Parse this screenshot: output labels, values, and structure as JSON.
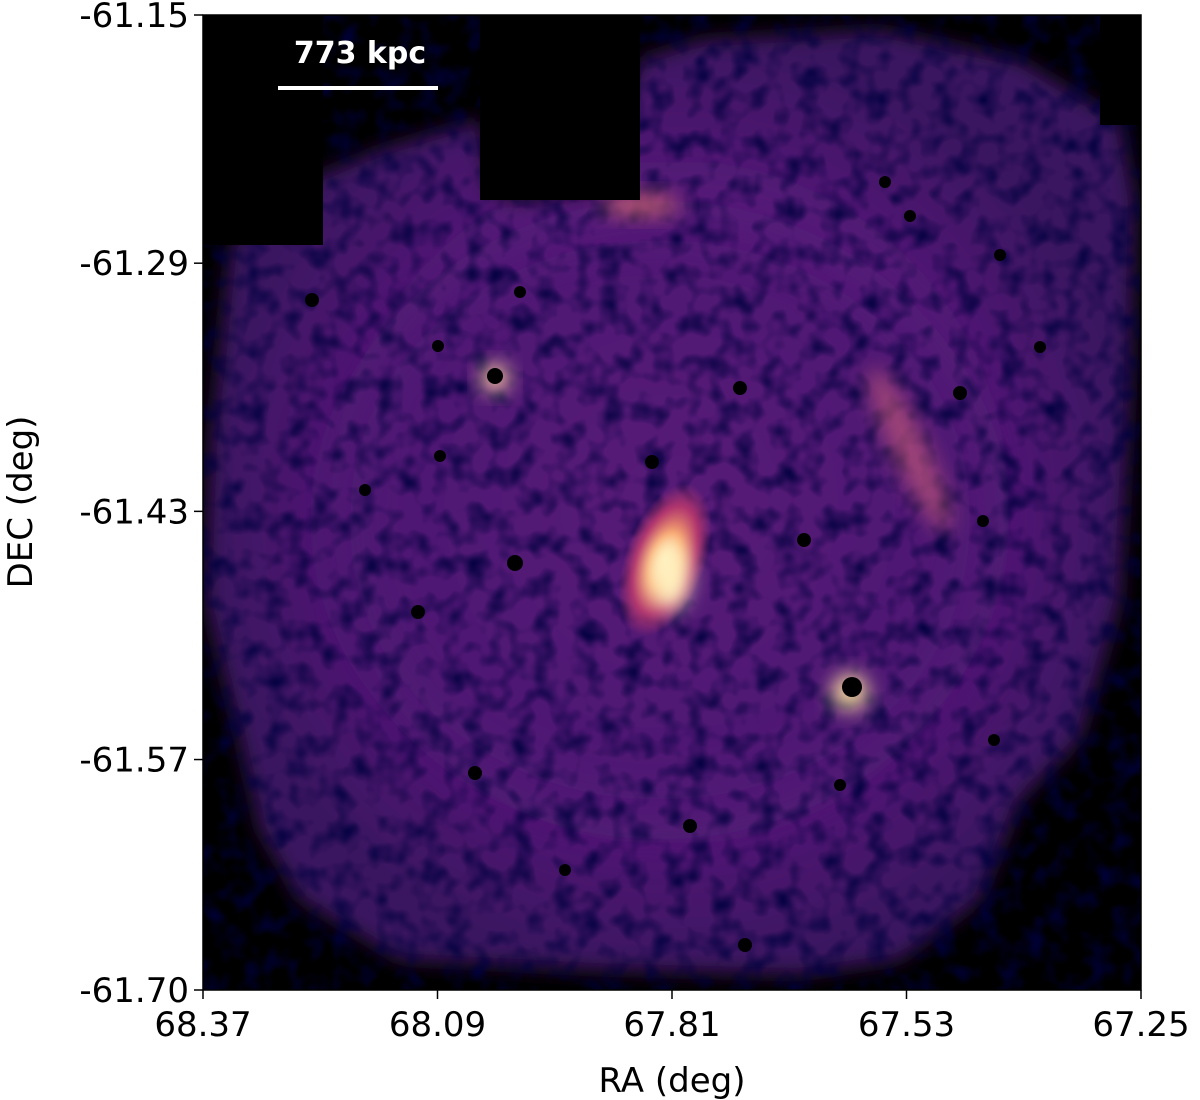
{
  "chart_data": {
    "type": "image",
    "xlabel": "RA (deg)",
    "ylabel": "DEC (deg)",
    "annotation": "773 kpc",
    "xlim": [
      68.37,
      67.25
    ],
    "xticks": [
      68.37,
      68.09,
      67.81,
      67.53,
      67.25
    ],
    "ylim": [
      {
        "value": -61.7,
        "label": "-61.70"
      },
      -61.15
    ],
    "yticks": [
      {
        "value": -61.7,
        "label": "-61.70"
      },
      -61.57,
      -61.43,
      -61.29,
      -61.15
    ]
  }
}
